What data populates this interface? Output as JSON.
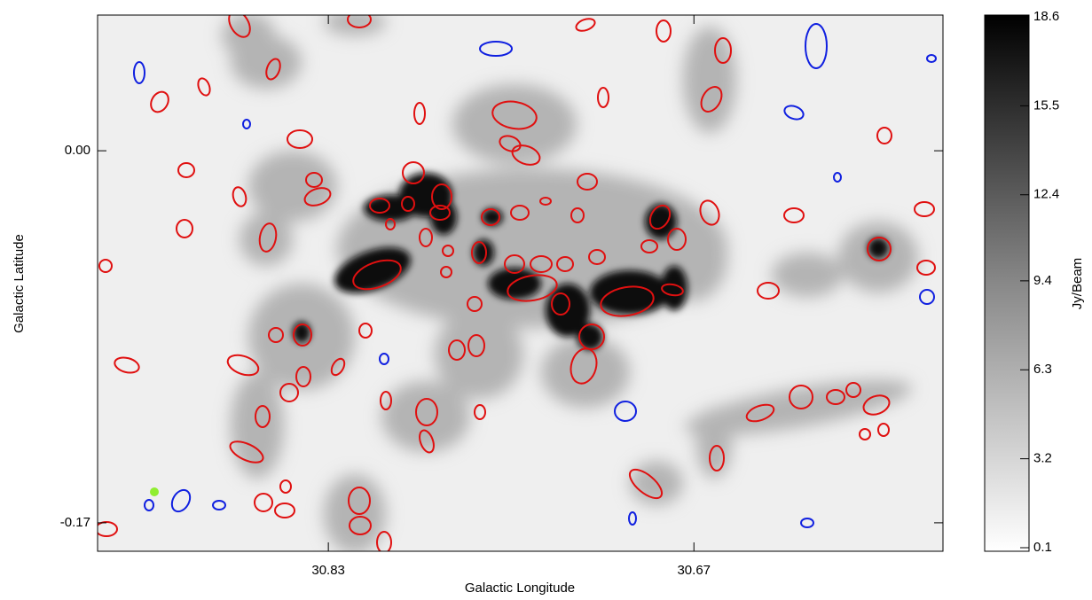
{
  "chart_data": {
    "type": "image",
    "xlabel": "Galactic Longitude",
    "ylabel": "Galactic Latitude",
    "xlim": [
      30.931,
      30.561
    ],
    "xticks": [
      30.83,
      30.67
    ],
    "ylim": [
      -0.183,
      0.062
    ],
    "yticks": [
      {
        "value": 0,
        "label": "0.00"
      },
      -0.17
    ],
    "colorbar": {
      "label": "Jy/Beam",
      "lim": [
        0.1,
        18.6
      ],
      "ticks": [
        0.1,
        3.2,
        6.3,
        9.4,
        12.4,
        15.5,
        18.6
      ]
    }
  }
}
